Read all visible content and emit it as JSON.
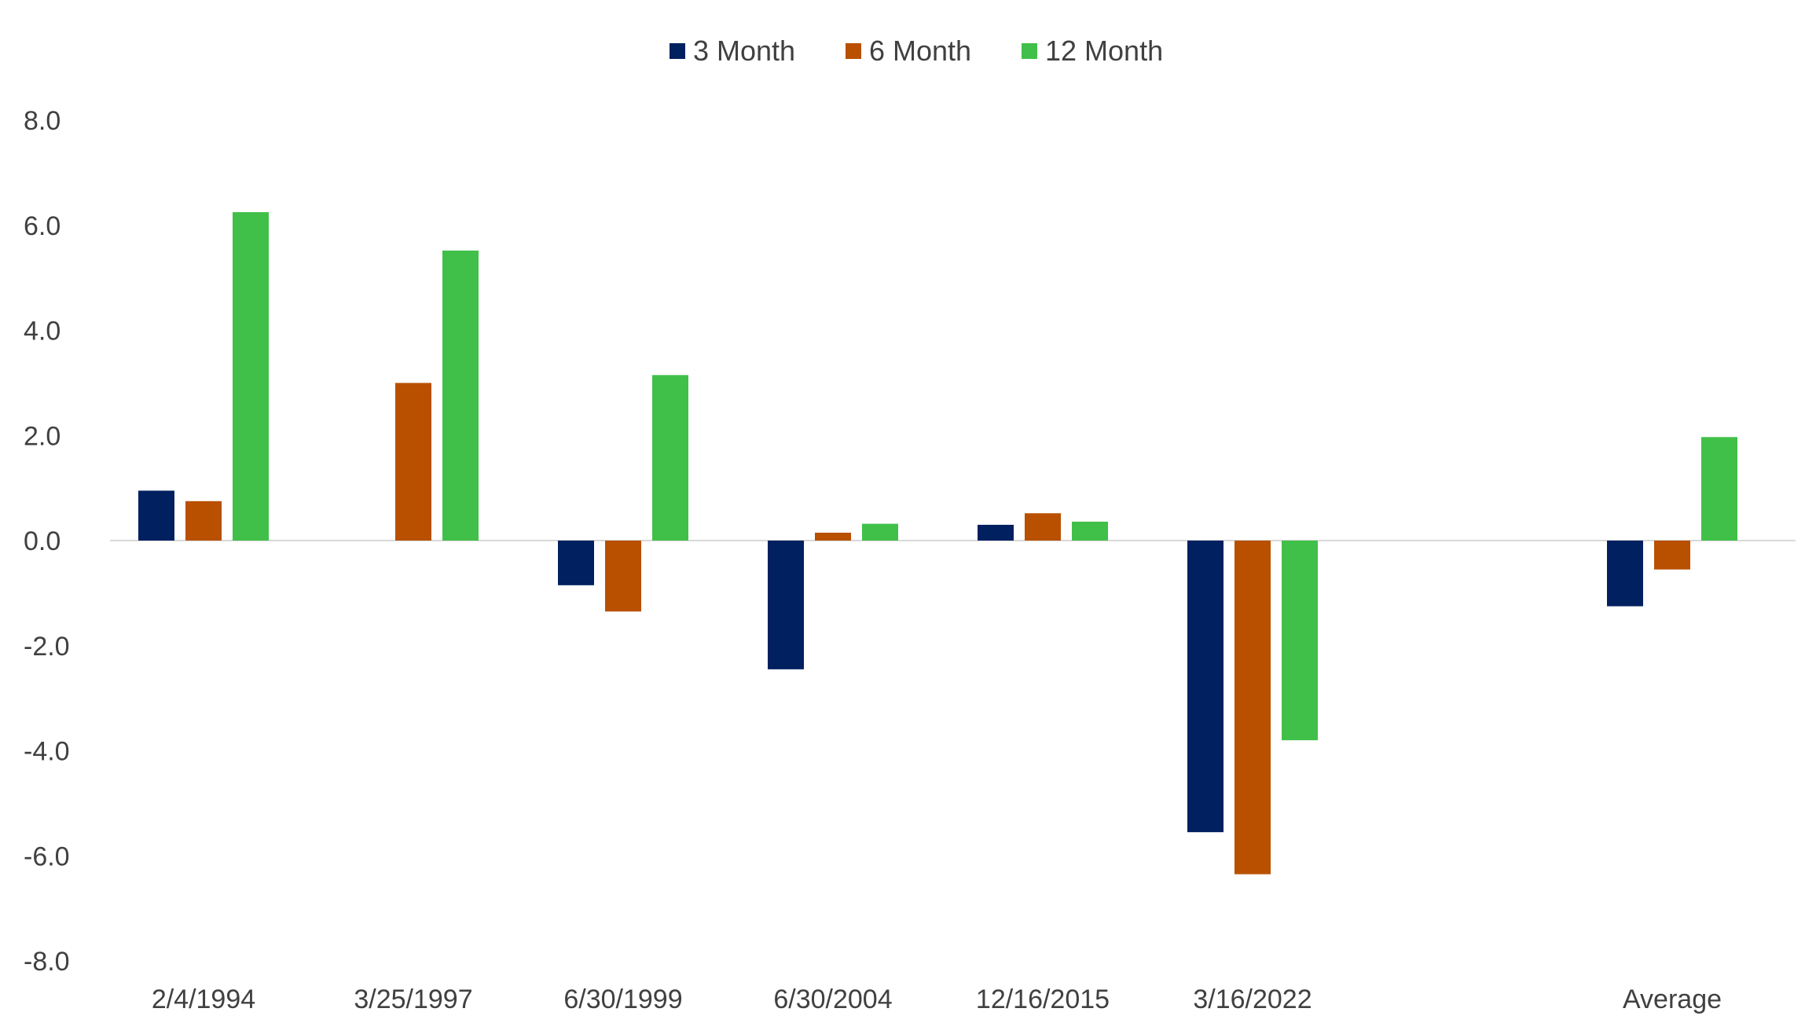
{
  "chart_data": {
    "type": "bar",
    "title": "",
    "xlabel": "",
    "ylabel": "",
    "categories": [
      "2/4/1994",
      "3/25/1997",
      "6/30/1999",
      "6/30/2004",
      "12/16/2015",
      "3/16/2022",
      "",
      "Average"
    ],
    "series": [
      {
        "name": "3 Month",
        "color": "#002060",
        "values": [
          0.95,
          null,
          -0.85,
          -2.45,
          0.3,
          -5.55,
          null,
          -1.25
        ]
      },
      {
        "name": "6 Month",
        "color": "#B85000",
        "values": [
          0.75,
          3.0,
          -1.35,
          0.15,
          0.52,
          -6.35,
          null,
          -0.55
        ]
      },
      {
        "name": "12 Month",
        "color": "#40C048",
        "values": [
          6.25,
          5.52,
          3.15,
          0.32,
          0.36,
          -3.8,
          null,
          1.97
        ]
      }
    ],
    "ylim": [
      -8.0,
      8.0
    ],
    "yticks": [
      "8.0",
      "6.0",
      "4.0",
      "2.0",
      "0.0",
      "-2.0",
      "-4.0",
      "-6.0",
      "-8.0"
    ],
    "ytick_values": [
      8,
      6,
      4,
      2,
      0,
      -2,
      -4,
      -6,
      -8
    ],
    "legend_position": "top-center",
    "grid": false,
    "zero_line_color": "#D9D9D9"
  }
}
